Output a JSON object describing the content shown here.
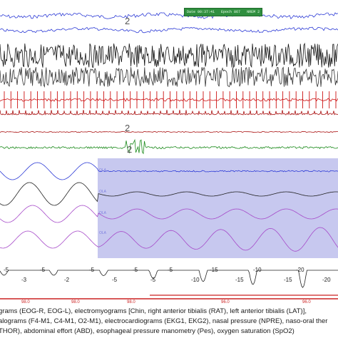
{
  "recording": {
    "status_bar": {
      "time": "Date 00:37:41",
      "epoch": "Epoch 867",
      "stage": "NREM 2"
    },
    "page_marker": "2",
    "bands": [
      {
        "key": "eog1",
        "color": "#2d3bd6"
      },
      {
        "key": "eog2",
        "color": "#2d3bd6"
      },
      {
        "key": "eeg1",
        "color": "#111111"
      },
      {
        "key": "eeg2",
        "color": "#333333"
      },
      {
        "key": "emg_chin",
        "color": "#cc1111"
      },
      {
        "key": "emg_rat",
        "color": "#aa1111"
      },
      {
        "key": "emg_lat",
        "color": "#aa1111"
      },
      {
        "key": "ekg",
        "color": "#1a8a1a"
      },
      {
        "key": "npre",
        "color": "#2d3bd6"
      },
      {
        "key": "flow",
        "color": "#222222"
      },
      {
        "key": "thor",
        "color": "#a64ac9"
      },
      {
        "key": "abd",
        "color": "#a64ac9"
      },
      {
        "key": "pes",
        "color": "#222222"
      },
      {
        "key": "spo2",
        "color": "#cc2222"
      }
    ],
    "apnea_event": {
      "label": "OLA",
      "color": "#7d7fe0"
    },
    "pes_values": [
      "-5",
      "-3",
      "-5",
      "-2",
      "-5",
      "-5",
      "-5",
      "-5",
      "-5",
      "-10",
      "-15",
      "-15",
      "-10",
      "-15",
      "-20",
      "-20"
    ],
    "spo2_values": [
      "98.0",
      "98.0",
      "98.0",
      "96.0",
      "96.0"
    ]
  },
  "caption": {
    "line1": "grams (EOG-R, EOG-L), electromyograms [Chin, right anterior tibialis (RAT), left anterior tibialis (LAT)],",
    "line2": "alograms (F4-M1, C4-M1, O2-M1), electrocardiograms (EKG1, EKG2), nasal pressure (NPRE), naso-oral ther",
    "line3": "THOR), abdominal effort (ABD), esophageal pressure manometry (Pes), oxygen saturation (SpO2)"
  }
}
